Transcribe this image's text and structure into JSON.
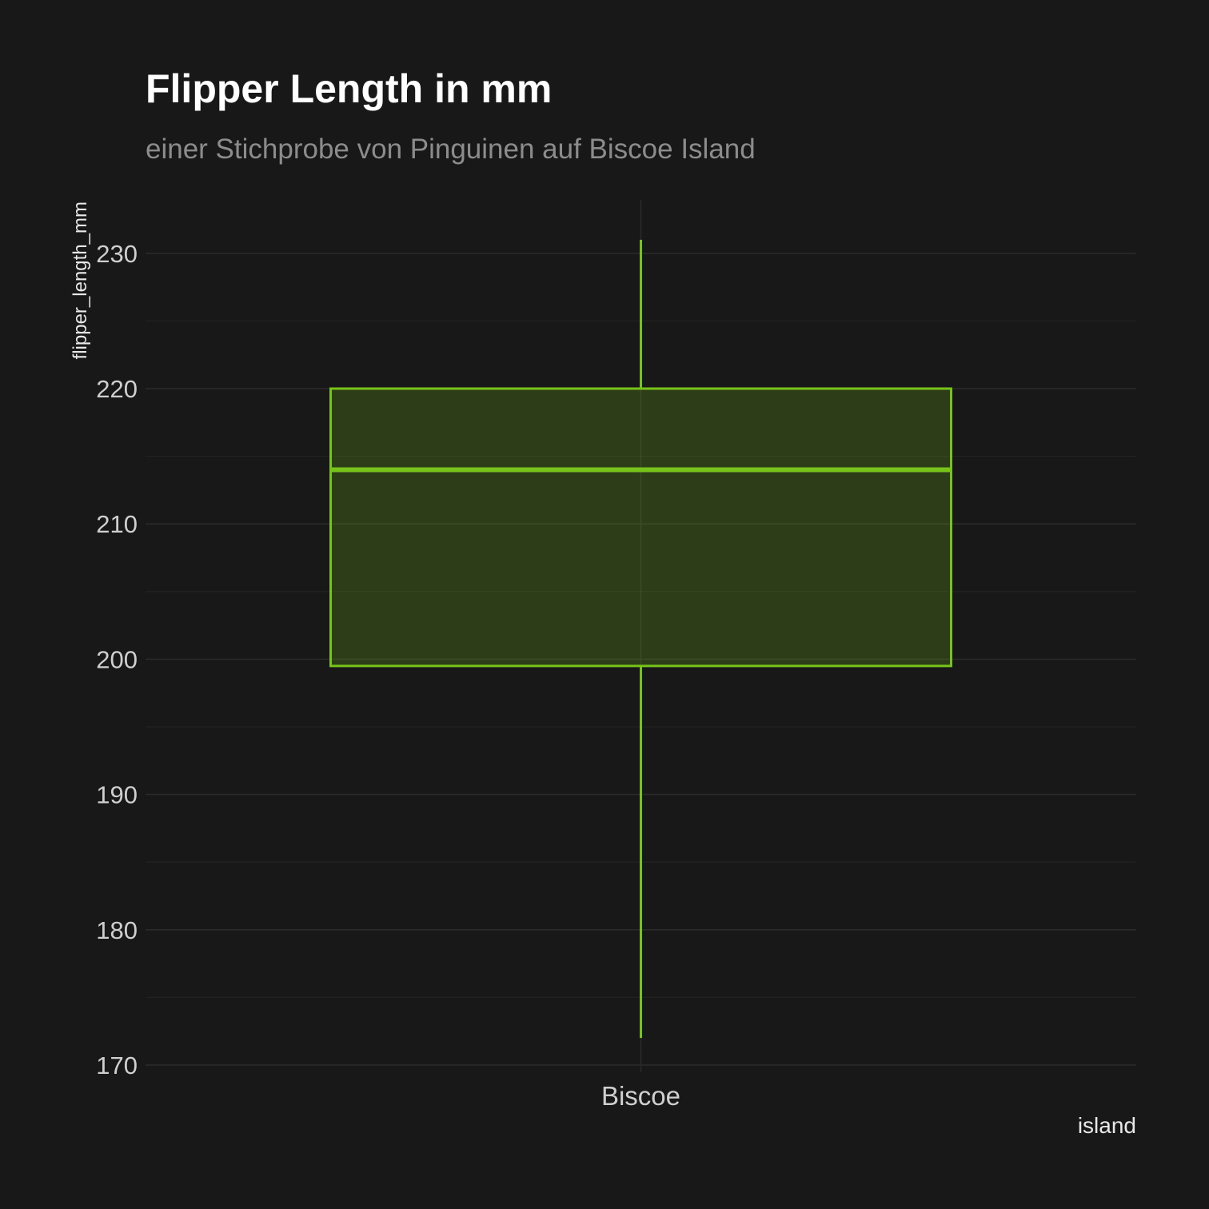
{
  "colors": {
    "background": "#181818",
    "grid": "#2a2a2a",
    "box_stroke": "#78c31a",
    "box_fill": "#2a3a14"
  },
  "chart_data": {
    "type": "boxplot",
    "title": "Flipper Length in mm",
    "subtitle": "einer Stichprobe von Pinguinen auf Biscoe Island",
    "xlabel": "island",
    "ylabel": "flipper_length_mm",
    "categories": [
      "Biscoe"
    ],
    "boxes": [
      {
        "category": "Biscoe",
        "min": 172,
        "q1": 199.5,
        "median": 214,
        "q3": 220,
        "max": 231
      }
    ],
    "ylim": [
      170,
      234
    ],
    "yticks": [
      170,
      180,
      190,
      200,
      210,
      220,
      230
    ],
    "yticks_minor": [
      175,
      185,
      195,
      205,
      215,
      225
    ],
    "grid": true,
    "legend": "none"
  }
}
